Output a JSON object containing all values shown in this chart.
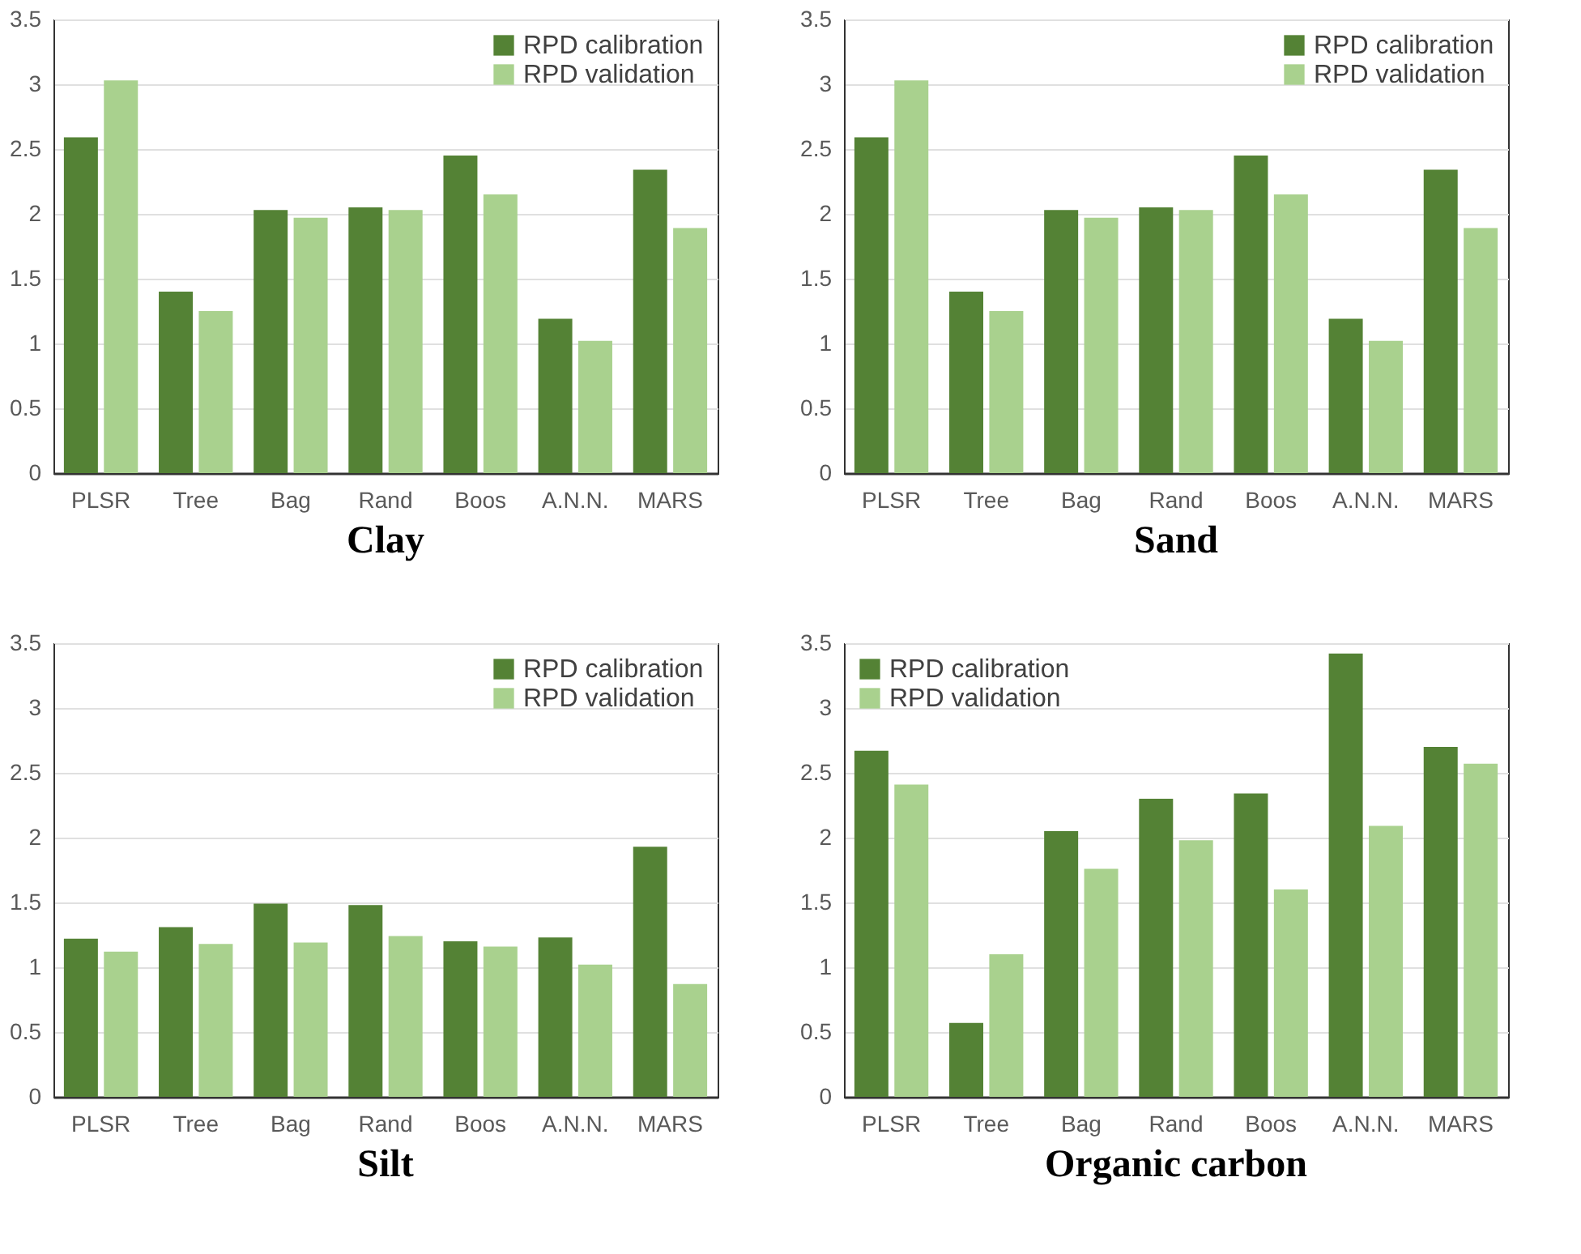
{
  "chart_data": [
    {
      "type": "bar",
      "title": "Clay",
      "categories": [
        "PLSR",
        "Tree",
        "Bag",
        "Rand",
        "Boos",
        "A.N.N.",
        "MARS"
      ],
      "series": [
        {
          "name": "RPD calibration",
          "color": "#548235",
          "values": [
            2.59,
            1.4,
            2.03,
            2.05,
            2.45,
            1.19,
            2.34
          ]
        },
        {
          "name": "RPD validation",
          "color": "#a9d18e",
          "values": [
            3.03,
            1.25,
            1.97,
            2.03,
            2.15,
            1.02,
            1.89
          ]
        }
      ],
      "ylim": [
        0,
        3.5
      ],
      "yticks": [
        0,
        0.5,
        1,
        1.5,
        2,
        2.5,
        3,
        3.5
      ],
      "grid": "y",
      "legend": "top right"
    },
    {
      "type": "bar",
      "title": "Sand",
      "categories": [
        "PLSR",
        "Tree",
        "Bag",
        "Rand",
        "Boos",
        "A.N.N.",
        "MARS"
      ],
      "series": [
        {
          "name": "RPD calibration",
          "color": "#548235",
          "values": [
            2.59,
            1.4,
            2.03,
            2.05,
            2.45,
            1.19,
            2.34
          ]
        },
        {
          "name": "RPD validation",
          "color": "#a9d18e",
          "values": [
            3.03,
            1.25,
            1.97,
            2.03,
            2.15,
            1.02,
            1.89
          ]
        }
      ],
      "ylim": [
        0,
        3.5
      ],
      "yticks": [
        0,
        0.5,
        1,
        1.5,
        2,
        2.5,
        3,
        3.5
      ],
      "grid": "y",
      "legend": "top right"
    },
    {
      "type": "bar",
      "title": "Silt",
      "categories": [
        "PLSR",
        "Tree",
        "Bag",
        "Rand",
        "Boos",
        "A.N.N.",
        "MARS"
      ],
      "series": [
        {
          "name": "RPD calibration",
          "color": "#548235",
          "values": [
            1.22,
            1.31,
            1.49,
            1.48,
            1.2,
            1.23,
            1.93
          ]
        },
        {
          "name": "RPD validation",
          "color": "#a9d18e",
          "values": [
            1.12,
            1.18,
            1.19,
            1.24,
            1.16,
            1.02,
            0.87
          ]
        }
      ],
      "ylim": [
        0,
        3.5
      ],
      "yticks": [
        0,
        0.5,
        1,
        1.5,
        2,
        2.5,
        3,
        3.5
      ],
      "grid": "y",
      "legend": "top right"
    },
    {
      "type": "bar",
      "title": "Organic carbon",
      "categories": [
        "PLSR",
        "Tree",
        "Bag",
        "Rand",
        "Boos",
        "A.N.N.",
        "MARS"
      ],
      "series": [
        {
          "name": "RPD calibration",
          "color": "#548235",
          "values": [
            2.67,
            0.57,
            2.05,
            2.3,
            2.34,
            3.42,
            2.7
          ]
        },
        {
          "name": "RPD validation",
          "color": "#a9d18e",
          "values": [
            2.41,
            1.1,
            1.76,
            1.98,
            1.6,
            2.09,
            2.57
          ]
        }
      ],
      "ylim": [
        0,
        3.5
      ],
      "yticks": [
        0,
        0.5,
        1,
        1.5,
        2,
        2.5,
        3,
        3.5
      ],
      "grid": "y",
      "legend": "top left"
    }
  ]
}
